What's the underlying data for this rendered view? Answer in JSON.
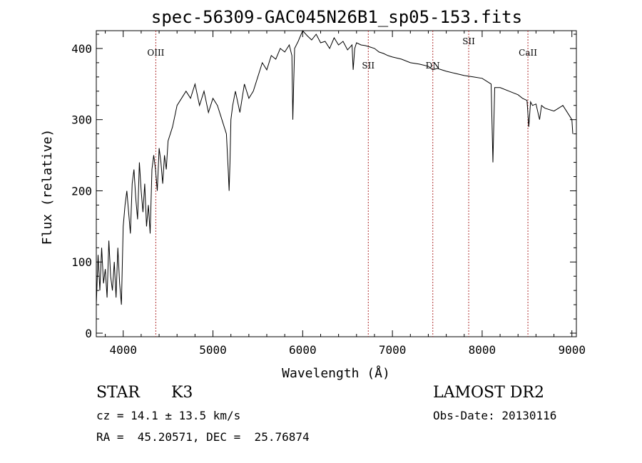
{
  "chart_data": {
    "type": "line",
    "title": "spec-56309-GAC045N26B1_sp05-153.fits",
    "xlabel": "Wavelength (Å)",
    "ylabel": "Flux (relative)",
    "xlim": [
      3700,
      9050
    ],
    "ylim": [
      -5,
      425
    ],
    "xticks": [
      4000,
      5000,
      6000,
      7000,
      8000,
      9000
    ],
    "yticks": [
      0,
      100,
      200,
      300,
      400
    ],
    "grid": false,
    "line_color": "#000000",
    "marker_color": "#b03030",
    "series": [
      {
        "x": [
          3700,
          3720,
          3740,
          3760,
          3780,
          3800,
          3820,
          3840,
          3860,
          3880,
          3900,
          3920,
          3940,
          3960,
          3980,
          4000,
          4020,
          4040,
          4060,
          4080,
          4100,
          4120,
          4140,
          4160,
          4180,
          4200,
          4220,
          4240,
          4260,
          4280,
          4300,
          4320,
          4340,
          4360,
          4380,
          4400,
          4420,
          4440,
          4460,
          4480,
          4500,
          4550,
          4600,
          4650,
          4700,
          4750,
          4800,
          4850,
          4900,
          4950,
          5000,
          5050,
          5100,
          5150,
          5170,
          5180,
          5190,
          5200,
          5220,
          5250,
          5300,
          5350,
          5400,
          5450,
          5500,
          5550,
          5600,
          5650,
          5700,
          5750,
          5800,
          5850,
          5880,
          5890,
          5900,
          5910,
          5950,
          6000,
          6050,
          6100,
          6150,
          6200,
          6250,
          6300,
          6350,
          6400,
          6450,
          6500,
          6550,
          6563,
          6580,
          6600,
          6650,
          6700,
          6750,
          6800,
          6850,
          6900,
          6950,
          7000,
          7100,
          7200,
          7300,
          7400,
          7450,
          7500,
          7600,
          7700,
          7800,
          7900,
          8000,
          8100,
          8120,
          8140,
          8200,
          8300,
          8400,
          8450,
          8500,
          8520,
          8540,
          8560,
          8600,
          8640,
          8662,
          8680,
          8700,
          8800,
          8900,
          8950,
          9000,
          9010
        ],
        "y": [
          40,
          110,
          60,
          120,
          70,
          90,
          50,
          130,
          80,
          60,
          100,
          50,
          120,
          70,
          40,
          150,
          180,
          200,
          170,
          140,
          210,
          230,
          190,
          160,
          240,
          200,
          170,
          210,
          150,
          180,
          140,
          230,
          250,
          230,
          200,
          260,
          240,
          210,
          250,
          230,
          270,
          290,
          320,
          330,
          340,
          330,
          350,
          320,
          340,
          310,
          330,
          320,
          300,
          280,
          230,
          200,
          240,
          300,
          320,
          340,
          310,
          350,
          330,
          340,
          360,
          380,
          370,
          390,
          385,
          400,
          395,
          405,
          390,
          300,
          350,
          400,
          410,
          425,
          418,
          412,
          420,
          408,
          410,
          400,
          415,
          405,
          410,
          398,
          405,
          370,
          400,
          408,
          405,
          404,
          402,
          400,
          395,
          393,
          390,
          388,
          385,
          380,
          378,
          375,
          370,
          372,
          368,
          365,
          362,
          360,
          358,
          350,
          240,
          345,
          345,
          340,
          335,
          330,
          327,
          290,
          325,
          320,
          322,
          300,
          320,
          318,
          316,
          312,
          320,
          310,
          300,
          280
        ]
      }
    ],
    "lines": [
      {
        "x": 4363,
        "label": "OIII"
      },
      {
        "x": 6731,
        "label": "SII"
      },
      {
        "x": 7450,
        "label": "DN"
      },
      {
        "x": 7850,
        "label": "SII"
      },
      {
        "x": 8510,
        "label": "CaII"
      }
    ]
  },
  "info": {
    "object_type": "STAR",
    "subclass": "K3",
    "survey": "LAMOST DR2",
    "cz_line": "cz = 14.1 ± 13.5 km/s",
    "obs_date": "Obs-Date: 20130116",
    "coords": "RA =  45.20571, DEC =  25.76874"
  }
}
